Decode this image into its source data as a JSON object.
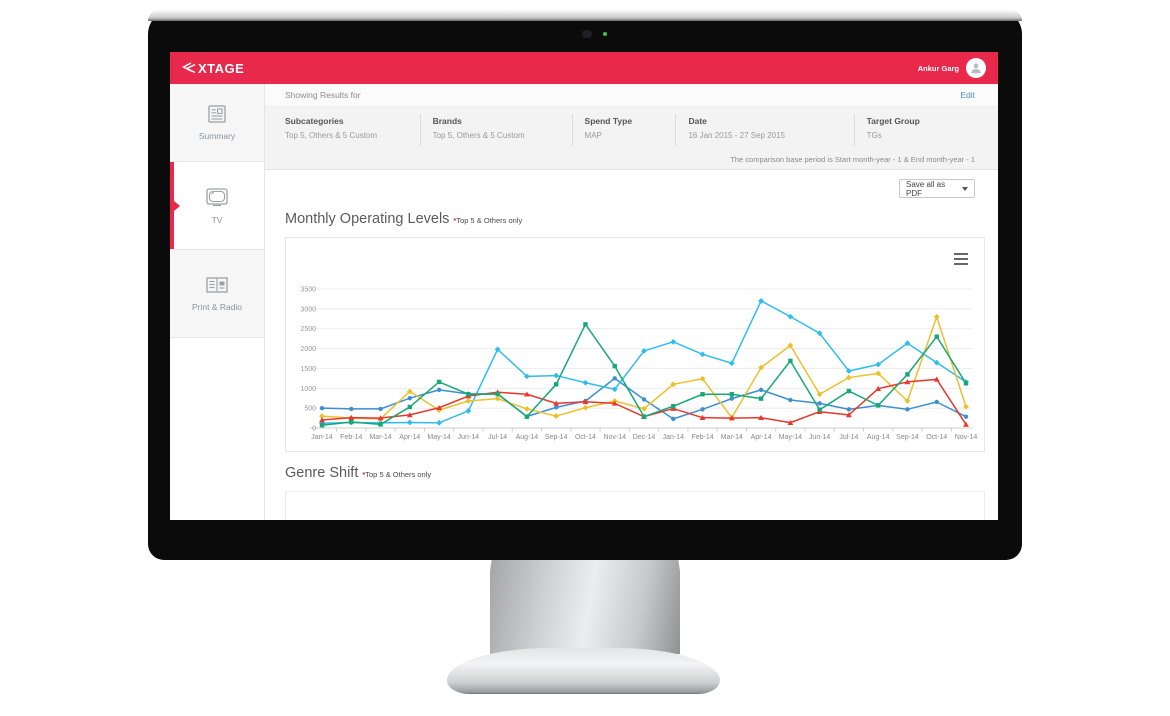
{
  "monitor": {
    "camera_led_color": "#3ec24e"
  },
  "app": {
    "brand_color": "#e8294b",
    "header": {
      "logo_text": "XTAGE",
      "user_name": "Ankur Garg"
    },
    "sidebar": {
      "items": [
        {
          "label": "Summary",
          "icon": "newspaper-icon",
          "active": false
        },
        {
          "label": "TV",
          "icon": "tv-icon",
          "active": true
        },
        {
          "label": "Print & Radio",
          "icon": "print-radio-icon",
          "active": false
        }
      ]
    },
    "results_bar": {
      "label": "Showing Results for",
      "edit_link": "Edit"
    },
    "filters": [
      {
        "label": "Subcategories",
        "value": "Top 5, Others & 5 Custom"
      },
      {
        "label": "Brands",
        "value": "Top 5, Others & 5 Custom"
      },
      {
        "label": "Spend Type",
        "value": "MAP"
      },
      {
        "label": "Date",
        "value": "16 Jan 2015 - 27 Sep 2015"
      },
      {
        "label": "Target Group",
        "value": "TGs"
      }
    ],
    "comparison_note": "The comparison base period is Start month-year - 1 & End month-year - 1",
    "toolbar": {
      "save_dropdown_label": "Save all as PDF"
    },
    "sections": [
      {
        "title": "Monthly Operating Levels",
        "note_star": "*",
        "note": "Top 5 & Others only"
      },
      {
        "title": "Genre Shift",
        "note_star": "*",
        "note": "Top 5 & Others only"
      }
    ]
  },
  "chart_data": {
    "type": "line",
    "title": "Monthly Operating Levels",
    "xlabel": "",
    "ylabel": "",
    "ylim": [
      0,
      3500
    ],
    "ytick_step": 500,
    "yticks": [
      0,
      500,
      1000,
      1500,
      2000,
      2500,
      3000,
      3500
    ],
    "grid": true,
    "legend_position": "none",
    "categories": [
      "Jan-14",
      "Feb-14",
      "Mar-14",
      "Apr-14",
      "May-14",
      "Jun-14",
      "Jul-14",
      "Aug-14",
      "Sep-14",
      "Oct-14",
      "Nov-14",
      "Dec-14",
      "Jan-14",
      "Feb-14",
      "Mar-14",
      "Apr-14",
      "May-14",
      "Jun-14",
      "Jul-14",
      "Aug-14",
      "Sep-14",
      "Oct-14",
      "Nov-14"
    ],
    "series": [
      {
        "name": "series-blue",
        "color": "#3d8fd0",
        "marker": "circle",
        "values": [
          500,
          480,
          480,
          750,
          960,
          860,
          860,
          290,
          520,
          680,
          1250,
          720,
          230,
          470,
          740,
          960,
          705,
          620,
          470,
          570,
          470,
          655,
          285
        ]
      },
      {
        "name": "series-cyan",
        "color": "#30bdec",
        "marker": "diamond",
        "values": [
          120,
          140,
          130,
          140,
          130,
          430,
          1980,
          1300,
          1320,
          1140,
          975,
          1940,
          2170,
          1855,
          1630,
          3200,
          2805,
          2385,
          1435,
          1600,
          2135,
          1645,
          1160
        ]
      },
      {
        "name": "series-yellow",
        "color": "#ecc02d",
        "marker": "diamond",
        "values": [
          300,
          250,
          230,
          920,
          450,
          680,
          740,
          480,
          300,
          510,
          680,
          485,
          1100,
          1240,
          260,
          1520,
          2080,
          850,
          1270,
          1375,
          680,
          2800,
          535
        ]
      },
      {
        "name": "series-red",
        "color": "#e8372c",
        "marker": "triangle",
        "values": [
          200,
          260,
          250,
          330,
          510,
          805,
          900,
          850,
          620,
          660,
          620,
          285,
          490,
          260,
          250,
          260,
          135,
          410,
          330,
          990,
          1160,
          1225,
          90
        ]
      },
      {
        "name": "series-green",
        "color": "#16a877",
        "marker": "square",
        "values": [
          70,
          150,
          90,
          530,
          1160,
          850,
          855,
          285,
          1100,
          2610,
          1560,
          285,
          550,
          850,
          850,
          740,
          1690,
          460,
          930,
          570,
          1350,
          2300,
          1125
        ]
      }
    ]
  }
}
